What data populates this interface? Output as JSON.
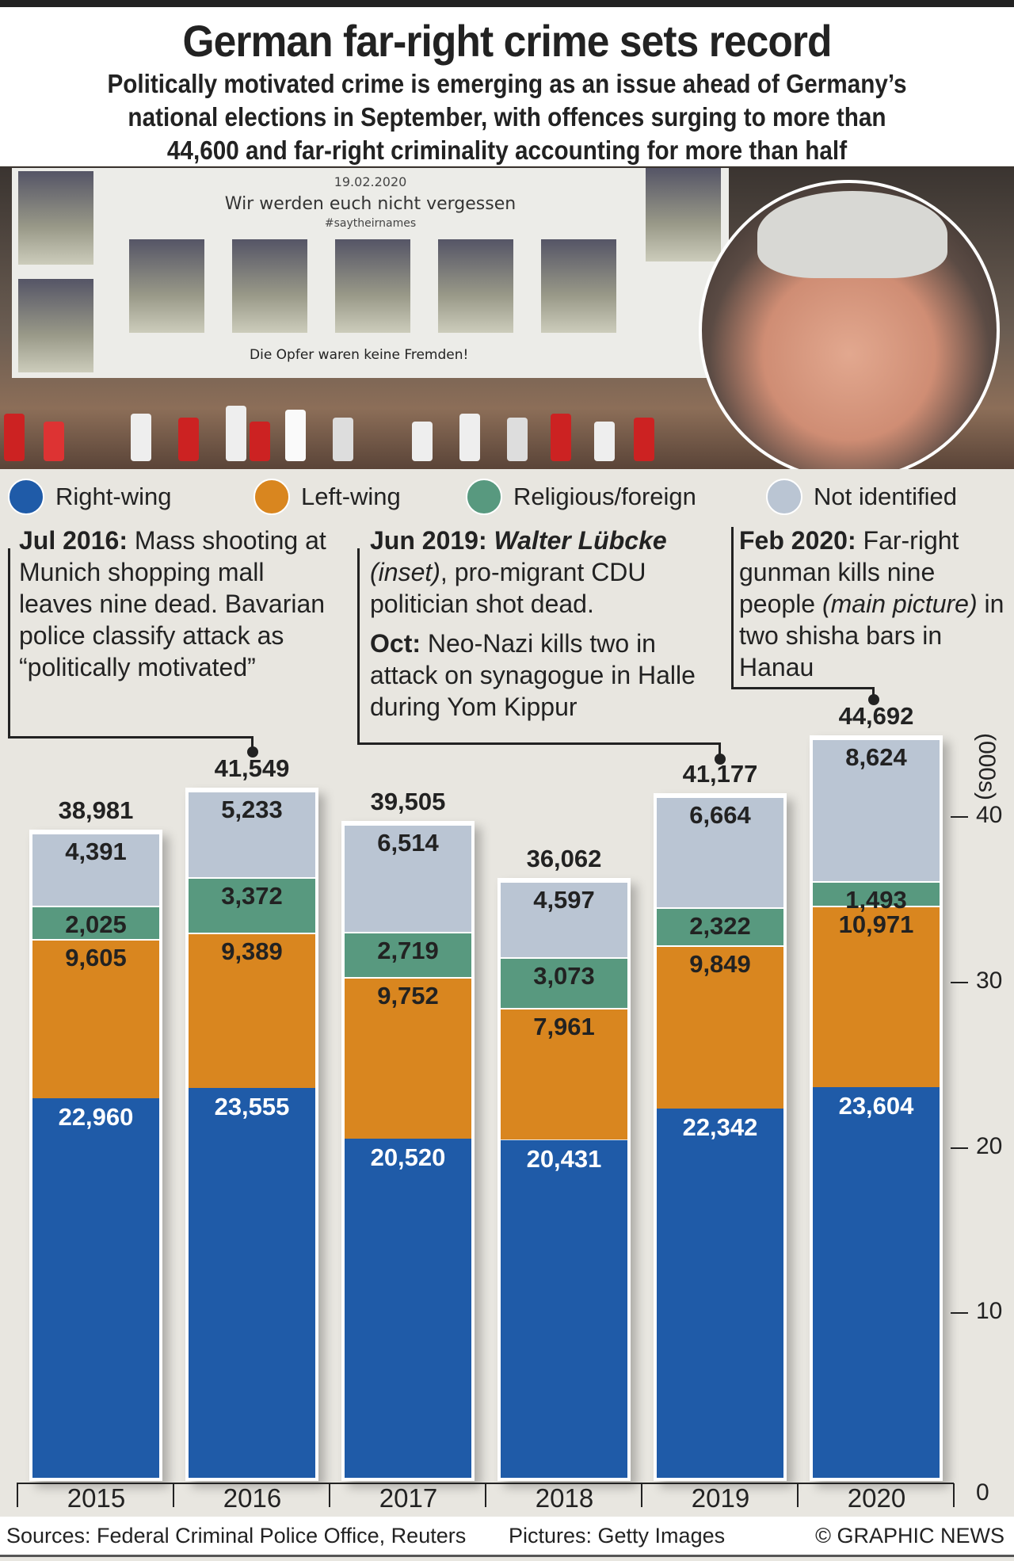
{
  "header": {
    "title": "German far-right crime sets record",
    "subtitle": [
      "Politically motivated crime is emerging as an issue ahead of Germany’s",
      "national elections in September, with offences surging to more than",
      "44,600 and far-right criminality accounting for more than half"
    ]
  },
  "photo": {
    "date": "19.02.2020",
    "banner": "Wir werden euch nicht vergessen",
    "hashtag": "#saytheirnames",
    "banner2": "Die Opfer waren keine Fremden!"
  },
  "legend": [
    {
      "label": "Right-wing",
      "color": "#1f5ba8"
    },
    {
      "label": "Left-wing",
      "color": "#d9861f"
    },
    {
      "label": "Religious/foreign",
      "color": "#58997f"
    },
    {
      "label": "Not identified",
      "color": "#bac5d3"
    }
  ],
  "annotations": [
    {
      "bold": "Jul 2016:",
      "text": " Mass shooting at Munich shopping mall leaves nine dead. Bavarian police classify attack as “politically motivated”"
    },
    {
      "bold": "Jun 2019:",
      "italic_bold": " Walter Lübcke",
      "italic": " (inset)",
      "text": ", pro-migrant CDU politician shot dead.",
      "bold2": "Oct:",
      "text2": " Neo-Nazi kills two in attack on synagogue in Halle during Yom Kippur"
    },
    {
      "bold": "Feb 2020:",
      "text": " Far-right gunman kills nine people ",
      "italic": "(main picture)",
      "text2": " in two shisha bars in Hanau"
    }
  ],
  "chart_data": {
    "type": "bar",
    "stacked": true,
    "categories": [
      "2015",
      "2016",
      "2017",
      "2018",
      "2019",
      "2020"
    ],
    "series": [
      {
        "name": "Right-wing",
        "values": [
          22960,
          23555,
          20520,
          20431,
          22342,
          23604
        ],
        "labels": [
          "22,960",
          "23,555",
          "20,520",
          "20,431",
          "22,342",
          "23,604"
        ]
      },
      {
        "name": "Left-wing",
        "values": [
          9605,
          9389,
          9752,
          7961,
          9849,
          10971
        ],
        "labels": [
          "9,605",
          "9,389",
          "9,752",
          "7,961",
          "9,849",
          "10,971"
        ]
      },
      {
        "name": "Religious/foreign",
        "values": [
          2025,
          3372,
          2719,
          3073,
          2322,
          1493
        ],
        "labels": [
          "2,025",
          "3,372",
          "2,719",
          "3,073",
          "2,322",
          "1,493"
        ]
      },
      {
        "name": "Not identified",
        "values": [
          4391,
          5233,
          6514,
          4597,
          6664,
          8624
        ],
        "labels": [
          "4,391",
          "5,233",
          "6,514",
          "4,597",
          "6,664",
          "8,624"
        ]
      }
    ],
    "totals": [
      "38,981",
      "41,549",
      "39,505",
      "36,062",
      "41,177",
      "44,692"
    ],
    "ylabel": "(000s)",
    "yticks": [
      "0",
      "10",
      "20",
      "30",
      "40"
    ],
    "ylim": [
      0,
      45000
    ]
  },
  "footer": {
    "sources": "Sources: Federal Criminal Police Office, Reuters",
    "pictures": "Pictures: Getty Images",
    "credit": "© GRAPHIC NEWS"
  }
}
